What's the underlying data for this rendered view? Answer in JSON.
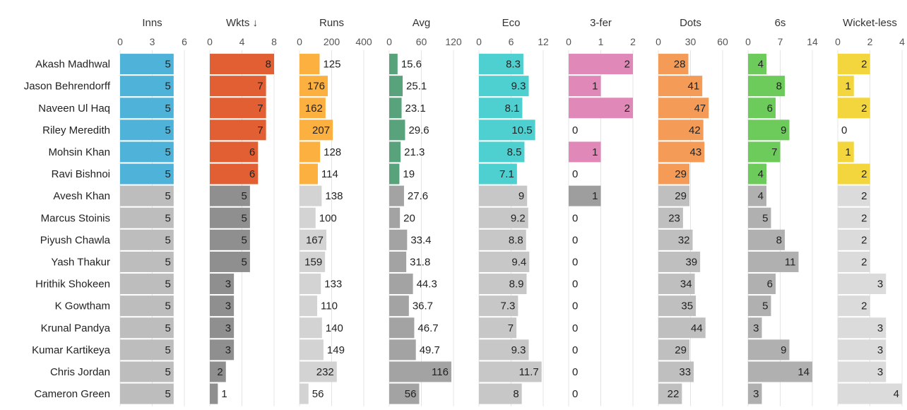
{
  "chart_data": {
    "type": "bar",
    "columns": [
      {
        "key": "inns",
        "label": "Inns",
        "max": 6,
        "ticks": [
          0,
          3,
          6
        ],
        "color": "#4fb3d9",
        "dark": false
      },
      {
        "key": "wkts",
        "label": "Wkts ↓",
        "max": 8,
        "ticks": [
          0,
          4,
          8
        ],
        "color": "#e15f33",
        "dark": true
      },
      {
        "key": "runs",
        "label": "Runs",
        "max": 400,
        "ticks": [
          0,
          200,
          400
        ],
        "color": "#fbb040",
        "dark": false
      },
      {
        "key": "avg",
        "label": "Avg",
        "max": 120,
        "ticks": [
          0,
          60,
          120
        ],
        "color": "#58a37c",
        "dark": false
      },
      {
        "key": "eco",
        "label": "Eco",
        "max": 12,
        "ticks": [
          0,
          6,
          12
        ],
        "color": "#4ed0d0",
        "dark": false
      },
      {
        "key": "threefer",
        "label": "3-fer",
        "max": 2,
        "ticks": [
          0,
          1,
          2
        ],
        "color": "#e089b8",
        "dark": false
      },
      {
        "key": "dots",
        "label": "Dots",
        "max": 60,
        "ticks": [
          0,
          30,
          60
        ],
        "color": "#f49b57",
        "dark": false
      },
      {
        "key": "sixes",
        "label": "6s",
        "max": 14,
        "ticks": [
          0,
          7,
          14
        ],
        "color": "#6ccb5a",
        "dark": false
      },
      {
        "key": "wicketless",
        "label": "Wicket-less",
        "max": 4,
        "ticks": [
          0,
          2,
          4
        ],
        "color": "#f3d53d",
        "dark": false
      }
    ],
    "highlight_color_rows": 6,
    "grey_shades": {
      "inns": "#bdbdbd",
      "wkts": "#8f8f8f",
      "runs": "#d3d3d3",
      "avg": "#a3a3a3",
      "eco": "#c7c7c7",
      "threefer": "#9e9e9e",
      "dots": "#bfbfbf",
      "sixes": "#b0b0b0",
      "wicketless": "#dbdbdb"
    },
    "rows": [
      {
        "name": "Akash Madhwal",
        "inns": 5,
        "wkts": 8,
        "runs": 125,
        "avg": 15.6,
        "eco": 8.3,
        "threefer": 2,
        "dots": 28,
        "sixes": 4,
        "wicketless": 2
      },
      {
        "name": "Jason Behrendorff",
        "inns": 5,
        "wkts": 7,
        "runs": 176,
        "avg": 25.1,
        "eco": 9.3,
        "threefer": 1,
        "dots": 41,
        "sixes": 8,
        "wicketless": 1
      },
      {
        "name": "Naveen Ul Haq",
        "inns": 5,
        "wkts": 7,
        "runs": 162,
        "avg": 23.1,
        "eco": 8.1,
        "threefer": 2,
        "dots": 47,
        "sixes": 6,
        "wicketless": 2
      },
      {
        "name": "Riley Meredith",
        "inns": 5,
        "wkts": 7,
        "runs": 207,
        "avg": 29.6,
        "eco": 10.5,
        "threefer": 0,
        "dots": 42,
        "sixes": 9,
        "wicketless": 0
      },
      {
        "name": "Mohsin Khan",
        "inns": 5,
        "wkts": 6,
        "runs": 128,
        "avg": 21.3,
        "eco": 8.5,
        "threefer": 1,
        "dots": 43,
        "sixes": 7,
        "wicketless": 1
      },
      {
        "name": "Ravi Bishnoi",
        "inns": 5,
        "wkts": 6,
        "runs": 114,
        "avg": 19,
        "eco": 7.1,
        "threefer": 0,
        "dots": 29,
        "sixes": 4,
        "wicketless": 2
      },
      {
        "name": "Avesh Khan",
        "inns": 5,
        "wkts": 5,
        "runs": 138,
        "avg": 27.6,
        "eco": 9,
        "threefer": 1,
        "dots": 29,
        "sixes": 4,
        "wicketless": 2
      },
      {
        "name": "Marcus Stoinis",
        "inns": 5,
        "wkts": 5,
        "runs": 100,
        "avg": 20,
        "eco": 9.2,
        "threefer": 0,
        "dots": 23,
        "sixes": 5,
        "wicketless": 2
      },
      {
        "name": "Piyush Chawla",
        "inns": 5,
        "wkts": 5,
        "runs": 167,
        "avg": 33.4,
        "eco": 8.8,
        "threefer": 0,
        "dots": 32,
        "sixes": 8,
        "wicketless": 2
      },
      {
        "name": "Yash Thakur",
        "inns": 5,
        "wkts": 5,
        "runs": 159,
        "avg": 31.8,
        "eco": 9.4,
        "threefer": 0,
        "dots": 39,
        "sixes": 11,
        "wicketless": 2
      },
      {
        "name": "Hrithik Shokeen",
        "inns": 5,
        "wkts": 3,
        "runs": 133,
        "avg": 44.3,
        "eco": 8.9,
        "threefer": 0,
        "dots": 34,
        "sixes": 6,
        "wicketless": 3
      },
      {
        "name": "K Gowtham",
        "inns": 5,
        "wkts": 3,
        "runs": 110,
        "avg": 36.7,
        "eco": 7.3,
        "threefer": 0,
        "dots": 35,
        "sixes": 5,
        "wicketless": 2
      },
      {
        "name": "Krunal Pandya",
        "inns": 5,
        "wkts": 3,
        "runs": 140,
        "avg": 46.7,
        "eco": 7,
        "threefer": 0,
        "dots": 44,
        "sixes": 3,
        "wicketless": 3
      },
      {
        "name": "Kumar Kartikeya",
        "inns": 5,
        "wkts": 3,
        "runs": 149,
        "avg": 49.7,
        "eco": 9.3,
        "threefer": 0,
        "dots": 29,
        "sixes": 9,
        "wicketless": 3
      },
      {
        "name": "Chris Jordan",
        "inns": 5,
        "wkts": 2,
        "runs": 232,
        "avg": 116,
        "eco": 11.7,
        "threefer": 0,
        "dots": 33,
        "sixes": 14,
        "wicketless": 3
      },
      {
        "name": "Cameron Green",
        "inns": 5,
        "wkts": 1,
        "runs": 56,
        "avg": 56,
        "eco": 8,
        "threefer": 0,
        "dots": 22,
        "sixes": 3,
        "wicketless": 4
      }
    ]
  }
}
